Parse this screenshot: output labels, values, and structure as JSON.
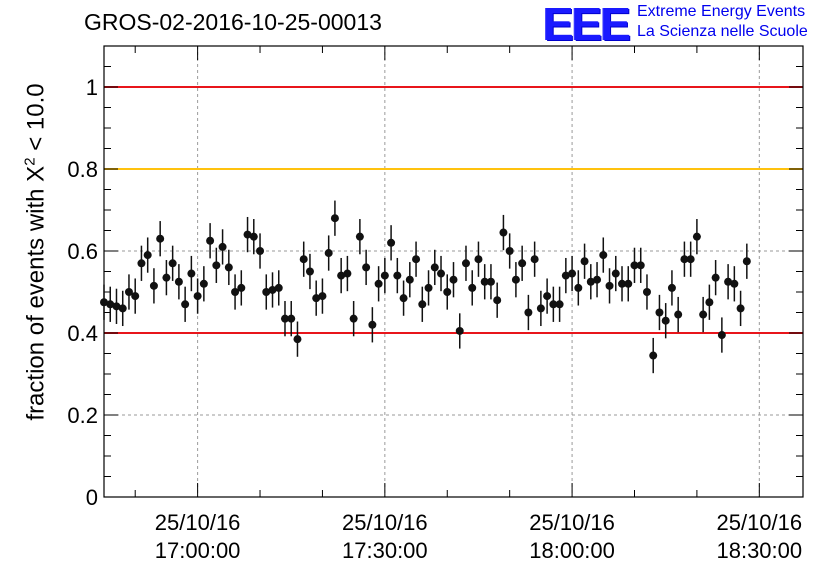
{
  "title": "GROS-02-2016-10-25-00013",
  "logo": {
    "mark": "EEE",
    "line1": "Extreme Energy Events",
    "line2": "La Scienza nelle Scuole",
    "color": "#1a1aff"
  },
  "chart_data": {
    "type": "scatter",
    "title": "GROS-02-2016-10-25-00013",
    "ylabel_prefix": "fraction of events with X",
    "ylabel_sup": "2",
    "ylabel_suffix": " < 10.0",
    "xlabel": "",
    "xlim": [
      "2016-10-25T16:45:00",
      "2016-10-25T18:37:00"
    ],
    "ylim": [
      0,
      1.1
    ],
    "y_ticks": [
      {
        "value": 0,
        "label": "0"
      },
      {
        "value": 0.2,
        "label": "0.2"
      },
      {
        "value": 0.4,
        "label": "0.4"
      },
      {
        "value": 0.6,
        "label": "0.6"
      },
      {
        "value": 0.8,
        "label": "0.8"
      },
      {
        "value": 1.0,
        "label": "1"
      }
    ],
    "x_ticks": [
      {
        "time": "2016-10-25T17:00:00",
        "line1": "25/10/16",
        "line2": "17:00:00"
      },
      {
        "time": "2016-10-25T17:30:00",
        "line1": "25/10/16",
        "line2": "17:30:00"
      },
      {
        "time": "2016-10-25T18:00:00",
        "line1": "25/10/16",
        "line2": "18:00:00"
      },
      {
        "time": "2016-10-25T18:30:00",
        "line1": "25/10/16",
        "line2": "18:30:00"
      }
    ],
    "grid": true,
    "reference_lines": [
      {
        "y": 1.0,
        "color": "#e8151b"
      },
      {
        "y": 0.8,
        "color": "#ffc20e"
      },
      {
        "y": 0.4,
        "color": "#e8151b"
      }
    ],
    "error_bar": 0.043,
    "series": [
      {
        "color": "#111111",
        "points": [
          [
            "2016-10-25T16:45:00",
            0.475
          ],
          [
            "2016-10-25T16:46:00",
            0.47
          ],
          [
            "2016-10-25T16:47:00",
            0.465
          ],
          [
            "2016-10-25T16:48:00",
            0.46
          ],
          [
            "2016-10-25T16:49:00",
            0.5
          ],
          [
            "2016-10-25T16:50:00",
            0.49
          ],
          [
            "2016-10-25T16:51:00",
            0.57
          ],
          [
            "2016-10-25T16:52:00",
            0.59
          ],
          [
            "2016-10-25T16:53:00",
            0.515
          ],
          [
            "2016-10-25T16:54:00",
            0.63
          ],
          [
            "2016-10-25T16:55:00",
            0.535
          ],
          [
            "2016-10-25T16:56:00",
            0.57
          ],
          [
            "2016-10-25T16:57:00",
            0.525
          ],
          [
            "2016-10-25T16:58:00",
            0.47
          ],
          [
            "2016-10-25T16:59:00",
            0.545
          ],
          [
            "2016-10-25T17:00:00",
            0.49
          ],
          [
            "2016-10-25T17:01:00",
            0.52
          ],
          [
            "2016-10-25T17:02:00",
            0.625
          ],
          [
            "2016-10-25T17:03:00",
            0.565
          ],
          [
            "2016-10-25T17:04:00",
            0.61
          ],
          [
            "2016-10-25T17:05:00",
            0.56
          ],
          [
            "2016-10-25T17:06:00",
            0.5
          ],
          [
            "2016-10-25T17:07:00",
            0.51
          ],
          [
            "2016-10-25T17:08:00",
            0.64
          ],
          [
            "2016-10-25T17:09:00",
            0.635
          ],
          [
            "2016-10-25T17:10:00",
            0.6
          ],
          [
            "2016-10-25T17:11:00",
            0.5
          ],
          [
            "2016-10-25T17:12:00",
            0.505
          ],
          [
            "2016-10-25T17:13:00",
            0.51
          ],
          [
            "2016-10-25T17:14:00",
            0.435
          ],
          [
            "2016-10-25T17:15:00",
            0.435
          ],
          [
            "2016-10-25T17:16:00",
            0.385
          ],
          [
            "2016-10-25T17:17:00",
            0.58
          ],
          [
            "2016-10-25T17:18:00",
            0.55
          ],
          [
            "2016-10-25T17:19:00",
            0.485
          ],
          [
            "2016-10-25T17:20:00",
            0.49
          ],
          [
            "2016-10-25T17:21:00",
            0.595
          ],
          [
            "2016-10-25T17:22:00",
            0.68
          ],
          [
            "2016-10-25T17:23:00",
            0.54
          ],
          [
            "2016-10-25T17:24:00",
            0.545
          ],
          [
            "2016-10-25T17:25:00",
            0.435
          ],
          [
            "2016-10-25T17:26:00",
            0.635
          ],
          [
            "2016-10-25T17:27:00",
            0.56
          ],
          [
            "2016-10-25T17:28:00",
            0.42
          ],
          [
            "2016-10-25T17:29:00",
            0.52
          ],
          [
            "2016-10-25T17:30:00",
            0.54
          ],
          [
            "2016-10-25T17:31:00",
            0.62
          ],
          [
            "2016-10-25T17:32:00",
            0.54
          ],
          [
            "2016-10-25T17:33:00",
            0.485
          ],
          [
            "2016-10-25T17:34:00",
            0.53
          ],
          [
            "2016-10-25T17:35:00",
            0.58
          ],
          [
            "2016-10-25T17:36:00",
            0.47
          ],
          [
            "2016-10-25T17:37:00",
            0.51
          ],
          [
            "2016-10-25T17:38:00",
            0.56
          ],
          [
            "2016-10-25T17:39:00",
            0.545
          ],
          [
            "2016-10-25T17:40:00",
            0.5
          ],
          [
            "2016-10-25T17:41:00",
            0.53
          ],
          [
            "2016-10-25T17:42:00",
            0.405
          ],
          [
            "2016-10-25T17:43:00",
            0.57
          ],
          [
            "2016-10-25T17:44:00",
            0.51
          ],
          [
            "2016-10-25T17:45:00",
            0.58
          ],
          [
            "2016-10-25T17:46:00",
            0.525
          ],
          [
            "2016-10-25T17:47:00",
            0.525
          ],
          [
            "2016-10-25T17:48:00",
            0.48
          ],
          [
            "2016-10-25T17:49:00",
            0.645
          ],
          [
            "2016-10-25T17:50:00",
            0.6
          ],
          [
            "2016-10-25T17:51:00",
            0.53
          ],
          [
            "2016-10-25T17:52:00",
            0.57
          ],
          [
            "2016-10-25T17:53:00",
            0.45
          ],
          [
            "2016-10-25T17:54:00",
            0.58
          ],
          [
            "2016-10-25T17:55:00",
            0.46
          ],
          [
            "2016-10-25T17:56:00",
            0.49
          ],
          [
            "2016-10-25T17:57:00",
            0.47
          ],
          [
            "2016-10-25T17:58:00",
            0.47
          ],
          [
            "2016-10-25T17:59:00",
            0.54
          ],
          [
            "2016-10-25T18:00:00",
            0.545
          ],
          [
            "2016-10-25T18:01:00",
            0.51
          ],
          [
            "2016-10-25T18:02:00",
            0.575
          ],
          [
            "2016-10-25T18:03:00",
            0.525
          ],
          [
            "2016-10-25T18:04:00",
            0.53
          ],
          [
            "2016-10-25T18:05:00",
            0.59
          ],
          [
            "2016-10-25T18:06:00",
            0.515
          ],
          [
            "2016-10-25T18:07:00",
            0.545
          ],
          [
            "2016-10-25T18:08:00",
            0.52
          ],
          [
            "2016-10-25T18:09:00",
            0.52
          ],
          [
            "2016-10-25T18:10:00",
            0.565
          ],
          [
            "2016-10-25T18:11:00",
            0.565
          ],
          [
            "2016-10-25T18:12:00",
            0.5
          ],
          [
            "2016-10-25T18:13:00",
            0.345
          ],
          [
            "2016-10-25T18:14:00",
            0.45
          ],
          [
            "2016-10-25T18:15:00",
            0.43
          ],
          [
            "2016-10-25T18:16:00",
            0.51
          ],
          [
            "2016-10-25T18:17:00",
            0.445
          ],
          [
            "2016-10-25T18:18:00",
            0.58
          ],
          [
            "2016-10-25T18:19:00",
            0.58
          ],
          [
            "2016-10-25T18:20:00",
            0.635
          ],
          [
            "2016-10-25T18:21:00",
            0.445
          ],
          [
            "2016-10-25T18:22:00",
            0.475
          ],
          [
            "2016-10-25T18:23:00",
            0.535
          ],
          [
            "2016-10-25T18:24:00",
            0.395
          ],
          [
            "2016-10-25T18:25:00",
            0.525
          ],
          [
            "2016-10-25T18:26:00",
            0.52
          ],
          [
            "2016-10-25T18:27:00",
            0.46
          ],
          [
            "2016-10-25T18:28:00",
            0.575
          ]
        ]
      }
    ]
  }
}
